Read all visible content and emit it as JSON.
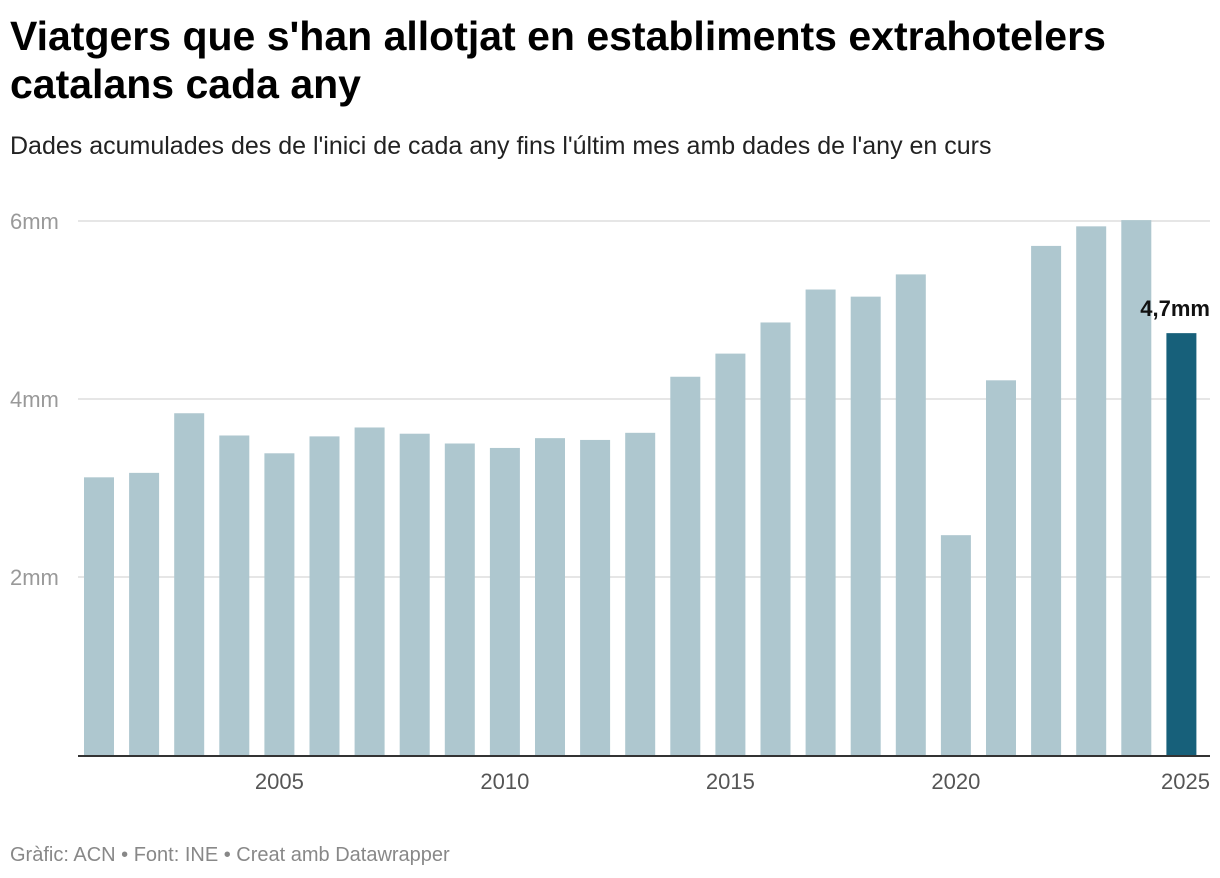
{
  "header": {
    "title": "Viatgers que s'han allotjat en establiments extrahotelers catalans cada any",
    "subtitle": "Dades acumulades des de l'inici de cada any fins l'últim mes amb dades de l'any en curs"
  },
  "footer": {
    "credits": "Gràfic: ACN • Font: INE • Creat amb Datawrapper"
  },
  "colors": {
    "bar": "#aec7cf",
    "highlight": "#17607a",
    "grid": "#dddddd",
    "axis": "#333333"
  },
  "chart_data": {
    "type": "bar",
    "title": "Viatgers que s'han allotjat en establiments extrahotelers catalans cada any",
    "subtitle": "Dades acumulades des de l'inici de cada any fins l'últim mes amb dades de l'any en curs",
    "xlabel": "",
    "ylabel": "",
    "categories": [
      2001,
      2002,
      2003,
      2004,
      2005,
      2006,
      2007,
      2008,
      2009,
      2010,
      2011,
      2012,
      2013,
      2014,
      2015,
      2016,
      2017,
      2018,
      2019,
      2020,
      2021,
      2022,
      2023,
      2024,
      2025
    ],
    "values": [
      3.12,
      3.17,
      3.84,
      3.59,
      3.39,
      3.58,
      3.68,
      3.61,
      3.5,
      3.45,
      3.56,
      3.54,
      3.62,
      4.25,
      4.51,
      4.86,
      5.23,
      5.15,
      5.4,
      2.47,
      4.21,
      5.72,
      5.94,
      6.01,
      4.74
    ],
    "ylim": [
      0,
      6
    ],
    "y_ticks": [
      {
        "value": 2,
        "label": "2mm"
      },
      {
        "value": 4,
        "label": "4mm"
      },
      {
        "value": 6,
        "label": "6mm"
      }
    ],
    "x_ticks": [
      {
        "value": 2005,
        "label": "2005"
      },
      {
        "value": 2010,
        "label": "2010"
      },
      {
        "value": 2015,
        "label": "2015"
      },
      {
        "value": 2020,
        "label": "2020"
      },
      {
        "value": 2025,
        "label": "2025"
      }
    ],
    "highlight_category": 2025,
    "annotation": {
      "category": 2025,
      "label": "4,7mm"
    },
    "grid": true
  }
}
